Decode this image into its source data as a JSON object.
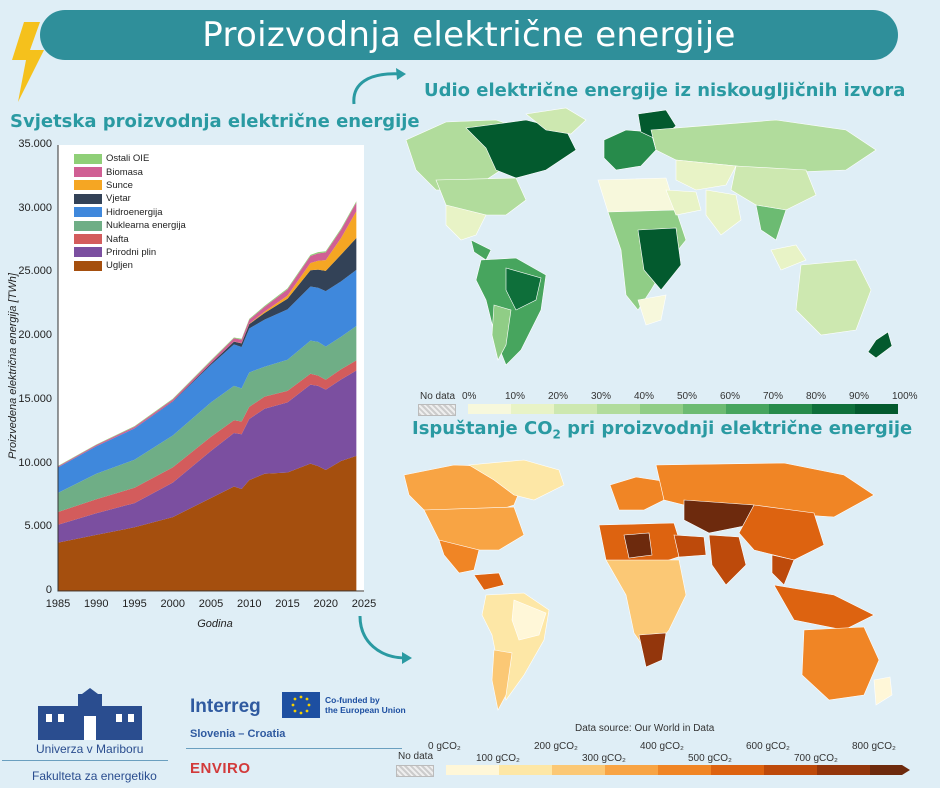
{
  "main_title": "Proizvodnja električne energije",
  "section_left_title": "Svjetska proizvodnja električne energije",
  "section_map1_title": "Udio električne energije iz niskougljičnih izvora",
  "section_map2_title_pre": "Ispuštanje CO",
  "section_map2_title_sub": "2",
  "section_map2_title_post": " pri proizvodnji električne energije",
  "chart_data": {
    "type": "area",
    "stacked": true,
    "ylabel": "Proizvedena električna energija [TWh]",
    "xlabel": "Godina",
    "xlim": [
      1985,
      2025
    ],
    "ylim": [
      0,
      35000
    ],
    "x_ticks": [
      "1985",
      "1990",
      "1995",
      "2000",
      "2005",
      "2010",
      "2015",
      "2020",
      "2025"
    ],
    "y_ticks": [
      "0",
      "5.000",
      "10.000",
      "15.000",
      "20.000",
      "25.000",
      "30.000",
      "35.000"
    ],
    "legend_position": "top-left",
    "x": [
      1985,
      1990,
      1995,
      2000,
      2005,
      2008,
      2009,
      2010,
      2012,
      2015,
      2018,
      2019,
      2020,
      2022,
      2024
    ],
    "series": [
      {
        "name": "Ugljen",
        "color": "#a54f0e",
        "values": [
          3800,
          4400,
          5000,
          5800,
          7300,
          8200,
          8000,
          8700,
          9200,
          9300,
          10000,
          9800,
          9500,
          10200,
          10600
        ]
      },
      {
        "name": "Prirodni plin",
        "color": "#7b4fa0",
        "values": [
          1400,
          1700,
          1900,
          2700,
          3700,
          4200,
          4300,
          4800,
          5100,
          5500,
          6200,
          6300,
          6300,
          6400,
          6700
        ]
      },
      {
        "name": "Nafta",
        "color": "#d35c5c",
        "values": [
          1000,
          1100,
          1200,
          1200,
          1100,
          1000,
          1000,
          950,
          950,
          900,
          850,
          800,
          780,
          800,
          800
        ]
      },
      {
        "name": "Nuklearna energija",
        "color": "#6fae86",
        "values": [
          1500,
          2000,
          2200,
          2500,
          2700,
          2700,
          2600,
          2700,
          2350,
          2450,
          2600,
          2650,
          2600,
          2550,
          2700
        ]
      },
      {
        "name": "Hidroenergija",
        "color": "#3f88dc",
        "values": [
          2000,
          2150,
          2450,
          2650,
          2950,
          3250,
          3250,
          3450,
          3700,
          3950,
          4250,
          4250,
          4350,
          4350,
          4400
        ]
      },
      {
        "name": "Vjetar",
        "color": "#334257",
        "values": [
          0,
          5,
          10,
          30,
          100,
          220,
          280,
          340,
          520,
          830,
          1270,
          1420,
          1590,
          2100,
          2500
        ]
      },
      {
        "name": "Sunce",
        "color": "#f5a623",
        "values": [
          0,
          0,
          0,
          1,
          4,
          12,
          20,
          32,
          100,
          250,
          570,
          700,
          850,
          1300,
          2100
        ]
      },
      {
        "name": "Biomasa",
        "color": "#d05f94",
        "values": [
          80,
          100,
          130,
          150,
          200,
          250,
          280,
          310,
          380,
          480,
          550,
          580,
          600,
          650,
          690
        ]
      },
      {
        "name": "Ostali OIE",
        "color": "#8fcf77",
        "values": [
          40,
          45,
          50,
          55,
          60,
          65,
          68,
          70,
          72,
          85,
          88,
          90,
          92,
          95,
          100
        ]
      }
    ]
  },
  "map1": {
    "nodata_label": "No data",
    "scale_labels": [
      "0%",
      "10%",
      "20%",
      "30%",
      "40%",
      "50%",
      "60%",
      "70%",
      "80%",
      "90%",
      "100%"
    ],
    "scale_colors": [
      "#f7f8dc",
      "#e8f3c6",
      "#cde8b0",
      "#b1dc9c",
      "#90cd86",
      "#6cbb72",
      "#47a55e",
      "#278b4b",
      "#0e6f3a",
      "#035a2e"
    ]
  },
  "map2": {
    "nodata_label": "No data",
    "source": "Data source: Our World in Data",
    "scale_labels_top": [
      "0 gCO₂",
      "200 gCO₂",
      "400 gCO₂",
      "600 gCO₂",
      "800 gCO₂"
    ],
    "scale_labels_bottom": [
      "100 gCO₂",
      "300 gCO₂",
      "500 gCO₂",
      "700 gCO₂"
    ],
    "scale_colors": [
      "#fff7d8",
      "#fde7a6",
      "#fbc875",
      "#f8a444",
      "#f08525",
      "#dd6310",
      "#bd4a0b",
      "#93360c",
      "#6d2a0d"
    ]
  },
  "footer": {
    "university": "Univerza v Mariboru",
    "faculty": "Fakulteta za energetiko",
    "interreg": "Interreg",
    "eu": "Co-funded by\nthe European Union",
    "region": "Slovenia – Croatia",
    "project": "ENVIRO"
  },
  "colors": {
    "accent": "#2f8f9a",
    "title_text": "#ffffff",
    "section_title": "#2a9aa2"
  }
}
